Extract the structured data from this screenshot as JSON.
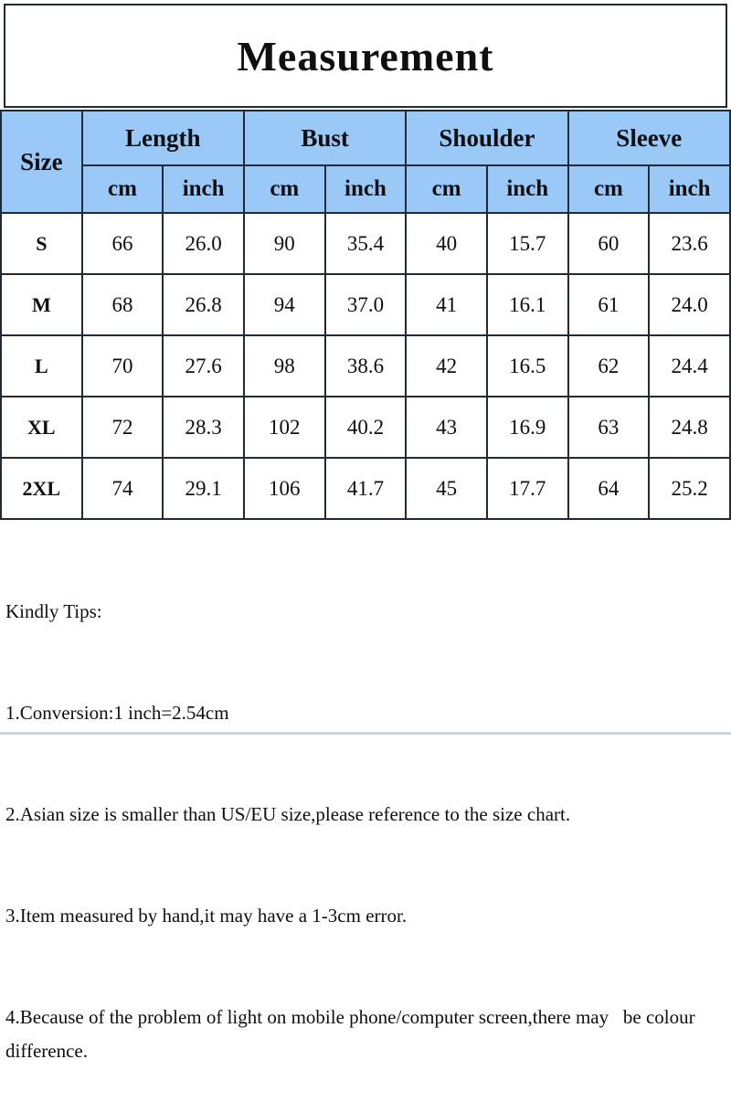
{
  "title": "Measurement",
  "table": {
    "size_header": "Size",
    "groups": [
      {
        "label": "Length"
      },
      {
        "label": "Bust"
      },
      {
        "label": "Shoulder"
      },
      {
        "label": "Sleeve"
      }
    ],
    "unit_headers": [
      "cm",
      "inch"
    ],
    "rows": [
      {
        "size": "S",
        "values": [
          "66",
          "26.0",
          "90",
          "35.4",
          "40",
          "15.7",
          "60",
          "23.6"
        ]
      },
      {
        "size": "M",
        "values": [
          "68",
          "26.8",
          "94",
          "37.0",
          "41",
          "16.1",
          "61",
          "24.0"
        ]
      },
      {
        "size": "L",
        "values": [
          "70",
          "27.6",
          "98",
          "38.6",
          "42",
          "16.5",
          "62",
          "24.4"
        ]
      },
      {
        "size": "XL",
        "values": [
          "72",
          "28.3",
          "102",
          "40.2",
          "43",
          "16.9",
          "63",
          "24.8"
        ]
      },
      {
        "size": "2XL",
        "values": [
          "74",
          "29.1",
          "106",
          "41.7",
          "45",
          "17.7",
          "64",
          "25.2"
        ]
      }
    ]
  },
  "tips": {
    "heading": "Kindly Tips:",
    "items": [
      "1.Conversion:1 inch=2.54cm",
      "2.Asian size is smaller than US/EU size,please reference to the size chart.",
      "3.Item measured by hand,it may have a 1-3cm error.",
      "4.Because of the problem of light on mobile phone/computer screen,there may   be colour difference."
    ]
  },
  "colors": {
    "header_bg": "#9ac9f7",
    "border": "#1f2b35",
    "text": "#0f0f0f",
    "background": "#ffffff",
    "bottom_strip": "#c7d3ee"
  }
}
